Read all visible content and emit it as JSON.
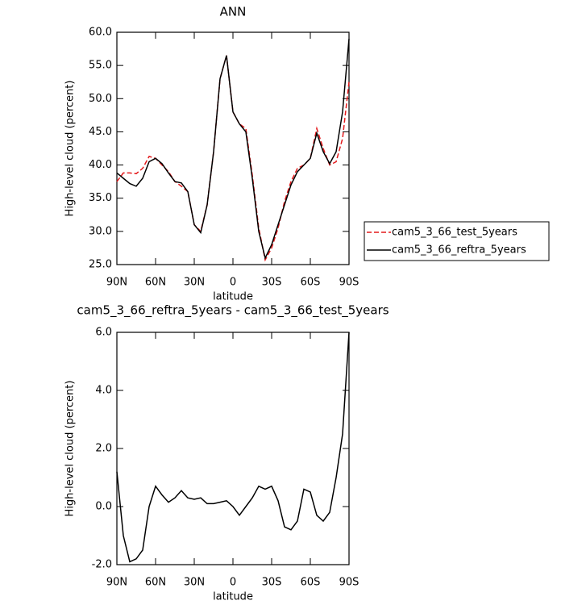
{
  "chart_data": [
    {
      "type": "line",
      "title": "ANN",
      "x_label": "latitude",
      "y_label": "High-level cloud (percent)",
      "x": [
        90,
        85,
        80,
        75,
        70,
        65,
        60,
        55,
        50,
        45,
        40,
        35,
        30,
        25,
        20,
        15,
        10,
        5,
        0,
        -5,
        -10,
        -15,
        -20,
        -25,
        -30,
        -35,
        -40,
        -45,
        -50,
        -55,
        -60,
        -65,
        -70,
        -75,
        -80,
        -85,
        -90
      ],
      "xlim": [
        90,
        -90
      ],
      "xticks": [
        {
          "value": 90,
          "label": "90N"
        },
        {
          "value": 60,
          "label": "60N"
        },
        {
          "value": 30,
          "label": "30N"
        },
        0,
        {
          "value": -30,
          "label": "30S"
        },
        {
          "value": -60,
          "label": "60S"
        },
        {
          "value": -90,
          "label": "90S"
        }
      ],
      "ylim": [
        25,
        60
      ],
      "yticks": [
        {
          "value": 25,
          "label": "25.0"
        },
        {
          "value": 30,
          "label": "30.0"
        },
        {
          "value": 35,
          "label": "35.0"
        },
        {
          "value": 40,
          "label": "40.0"
        },
        {
          "value": 45,
          "label": "45.0"
        },
        {
          "value": 50,
          "label": "50.0"
        },
        {
          "value": 55,
          "label": "55.0"
        },
        {
          "value": 60,
          "label": "60.0"
        }
      ],
      "legend": "right",
      "series": [
        {
          "name": "cam5_3_66_test_5years",
          "color": "#e41a1c",
          "dashed": true,
          "values": [
            37.5,
            38.8,
            38.8,
            38.7,
            39.5,
            41.3,
            41.0,
            40.0,
            39.0,
            37.5,
            36.8,
            36.0,
            31.0,
            30.0,
            34.0,
            42.0,
            53.0,
            56.5,
            48.0,
            46.2,
            45.5,
            38.5,
            30.5,
            25.7,
            27.5,
            30.5,
            34.5,
            37.5,
            39.5,
            40.0,
            41.0,
            45.5,
            42.5,
            40.0,
            40.5,
            44.0,
            52.5
          ]
        },
        {
          "name": "cam5_3_66_reftra_5years",
          "color": "#000000",
          "dashed": false,
          "values": [
            38.8,
            38.0,
            37.2,
            36.8,
            38.0,
            40.5,
            41.0,
            40.2,
            38.8,
            37.5,
            37.3,
            36.0,
            31.0,
            29.8,
            34.0,
            42.0,
            53.0,
            56.5,
            48.0,
            46.2,
            45.0,
            38.0,
            30.0,
            26.0,
            28.0,
            31.0,
            34.0,
            37.0,
            39.0,
            40.0,
            41.0,
            44.8,
            42.0,
            40.2,
            42.0,
            48.0,
            59.0
          ]
        }
      ]
    },
    {
      "type": "line",
      "title": "cam5_3_66_reftra_5years - cam5_3_66_test_5years",
      "x_label": "latitude",
      "y_label": "High-level cloud (percent)",
      "x": [
        90,
        85,
        80,
        75,
        70,
        65,
        60,
        55,
        50,
        45,
        40,
        35,
        30,
        25,
        20,
        15,
        10,
        5,
        0,
        -5,
        -10,
        -15,
        -20,
        -25,
        -30,
        -35,
        -40,
        -45,
        -50,
        -55,
        -60,
        -65,
        -70,
        -75,
        -80,
        -85,
        -90
      ],
      "xlim": [
        90,
        -90
      ],
      "xticks": [
        {
          "value": 90,
          "label": "90N"
        },
        {
          "value": 60,
          "label": "60N"
        },
        {
          "value": 30,
          "label": "30N"
        },
        0,
        {
          "value": -30,
          "label": "30S"
        },
        {
          "value": -60,
          "label": "60S"
        },
        {
          "value": -90,
          "label": "90S"
        }
      ],
      "ylim": [
        -2,
        6
      ],
      "yticks": [
        {
          "value": -2,
          "label": "-2.0"
        },
        {
          "value": 0,
          "label": "0.0"
        },
        {
          "value": 2,
          "label": "2.0"
        },
        {
          "value": 4,
          "label": "4.0"
        },
        {
          "value": 6,
          "label": "6.0"
        }
      ],
      "series": [
        {
          "color": "#000000",
          "dashed": false,
          "values": [
            1.2,
            -1.0,
            -1.9,
            -1.8,
            -1.5,
            0.0,
            0.7,
            0.4,
            0.15,
            0.3,
            0.55,
            0.3,
            0.25,
            0.3,
            0.1,
            0.1,
            0.15,
            0.2,
            0.0,
            -0.3,
            0.0,
            0.3,
            0.7,
            0.6,
            0.7,
            0.2,
            -0.7,
            -0.8,
            -0.5,
            0.6,
            0.5,
            -0.3,
            -0.5,
            -0.2,
            1.0,
            2.5,
            6.0
          ]
        }
      ]
    }
  ]
}
